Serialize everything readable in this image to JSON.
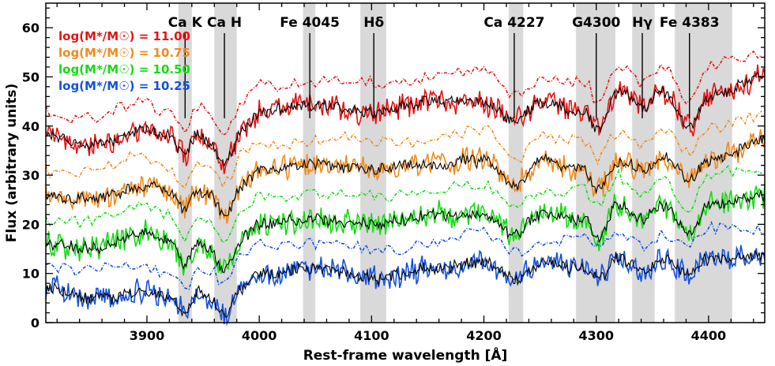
{
  "chart_data": {
    "type": "line",
    "xlabel": "Rest-frame wavelength [Å]",
    "ylabel": "Flux (arbitrary units)",
    "xlim": [
      3810,
      4450
    ],
    "ylim": [
      0,
      65
    ],
    "x_ticks": [
      3900,
      4000,
      4100,
      4200,
      4300,
      4400
    ],
    "y_ticks": [
      0,
      10,
      20,
      30,
      40,
      50,
      60
    ],
    "grid": false,
    "legend_position": "top-left",
    "bands": [
      {
        "label": "Ca K",
        "x0": 3928,
        "x1": 3940,
        "line_x": 3934
      },
      {
        "label": "Ca H",
        "x0": 3960,
        "x1": 3980,
        "line_x": 3969
      },
      {
        "label": "Fe 4045",
        "x0": 4039,
        "x1": 4050,
        "line_x": 4045
      },
      {
        "label": "Hδ",
        "x0": 4090,
        "x1": 4113,
        "line_x": 4102
      },
      {
        "label": "Ca 4227",
        "x0": 4222,
        "x1": 4235,
        "line_x": 4227
      },
      {
        "label": "G4300",
        "x0": 4282,
        "x1": 4317,
        "line_x": 4300
      },
      {
        "label": "Hγ",
        "x0": 4332,
        "x1": 4352,
        "line_x": 4341
      },
      {
        "label": "Fe 4383",
        "x0": 4370,
        "x1": 4421,
        "line_x": 4383
      }
    ],
    "series": [
      {
        "name": "log(M*/M☉) = 11.00",
        "color": "#e51414",
        "base": 40,
        "knots": [
          [
            3810,
            38
          ],
          [
            3850,
            36
          ],
          [
            3900,
            39
          ],
          [
            3920,
            38
          ],
          [
            3934,
            34
          ],
          [
            3945,
            39
          ],
          [
            3955,
            37
          ],
          [
            3969,
            32
          ],
          [
            3985,
            39
          ],
          [
            4000,
            43
          ],
          [
            4050,
            44
          ],
          [
            4100,
            43
          ],
          [
            4150,
            45
          ],
          [
            4200,
            45
          ],
          [
            4227,
            41
          ],
          [
            4250,
            45
          ],
          [
            4290,
            43
          ],
          [
            4300,
            39
          ],
          [
            4320,
            47
          ],
          [
            4341,
            44
          ],
          [
            4360,
            47
          ],
          [
            4383,
            40
          ],
          [
            4400,
            46
          ],
          [
            4450,
            50
          ]
        ]
      },
      {
        "name": "log(M*/M☉) = 10.75",
        "color": "#f08a1c",
        "base": 28,
        "knots": [
          [
            3810,
            26
          ],
          [
            3850,
            25
          ],
          [
            3900,
            28
          ],
          [
            3920,
            27
          ],
          [
            3934,
            23
          ],
          [
            3945,
            27
          ],
          [
            3955,
            26
          ],
          [
            3969,
            22
          ],
          [
            3985,
            28
          ],
          [
            4000,
            31
          ],
          [
            4050,
            32
          ],
          [
            4100,
            31
          ],
          [
            4150,
            32
          ],
          [
            4200,
            33
          ],
          [
            4227,
            28
          ],
          [
            4250,
            33
          ],
          [
            4290,
            31
          ],
          [
            4300,
            27
          ],
          [
            4320,
            33
          ],
          [
            4341,
            31
          ],
          [
            4360,
            34
          ],
          [
            4383,
            29
          ],
          [
            4400,
            33
          ],
          [
            4450,
            37
          ]
        ]
      },
      {
        "name": "log(M*/M☉) = 10.50",
        "color": "#14dc14",
        "base": 17,
        "knots": [
          [
            3810,
            16
          ],
          [
            3850,
            15
          ],
          [
            3900,
            18
          ],
          [
            3920,
            17
          ],
          [
            3934,
            12
          ],
          [
            3945,
            16
          ],
          [
            3955,
            15
          ],
          [
            3969,
            11
          ],
          [
            3985,
            17
          ],
          [
            4000,
            20
          ],
          [
            4050,
            21
          ],
          [
            4100,
            20
          ],
          [
            4150,
            22
          ],
          [
            4200,
            22
          ],
          [
            4227,
            18
          ],
          [
            4250,
            22
          ],
          [
            4290,
            21
          ],
          [
            4300,
            17
          ],
          [
            4320,
            24
          ],
          [
            4341,
            21
          ],
          [
            4360,
            24
          ],
          [
            4383,
            18
          ],
          [
            4400,
            24
          ],
          [
            4450,
            26
          ]
        ]
      },
      {
        "name": "log(M*/M☉) = 10.25",
        "color": "#1450dc",
        "base": 6,
        "knots": [
          [
            3810,
            7
          ],
          [
            3850,
            5
          ],
          [
            3900,
            6
          ],
          [
            3920,
            5
          ],
          [
            3934,
            2
          ],
          [
            3945,
            6
          ],
          [
            3955,
            5
          ],
          [
            3969,
            2
          ],
          [
            3985,
            7
          ],
          [
            4000,
            10
          ],
          [
            4050,
            11
          ],
          [
            4100,
            9
          ],
          [
            4150,
            11
          ],
          [
            4200,
            12
          ],
          [
            4227,
            9
          ],
          [
            4250,
            12
          ],
          [
            4290,
            11
          ],
          [
            4300,
            9
          ],
          [
            4320,
            13
          ],
          [
            4341,
            11
          ],
          [
            4360,
            13
          ],
          [
            4383,
            10
          ],
          [
            4400,
            13
          ],
          [
            4450,
            14
          ]
        ]
      }
    ],
    "dotted_offset_note": "",
    "model_color": "#000000"
  }
}
